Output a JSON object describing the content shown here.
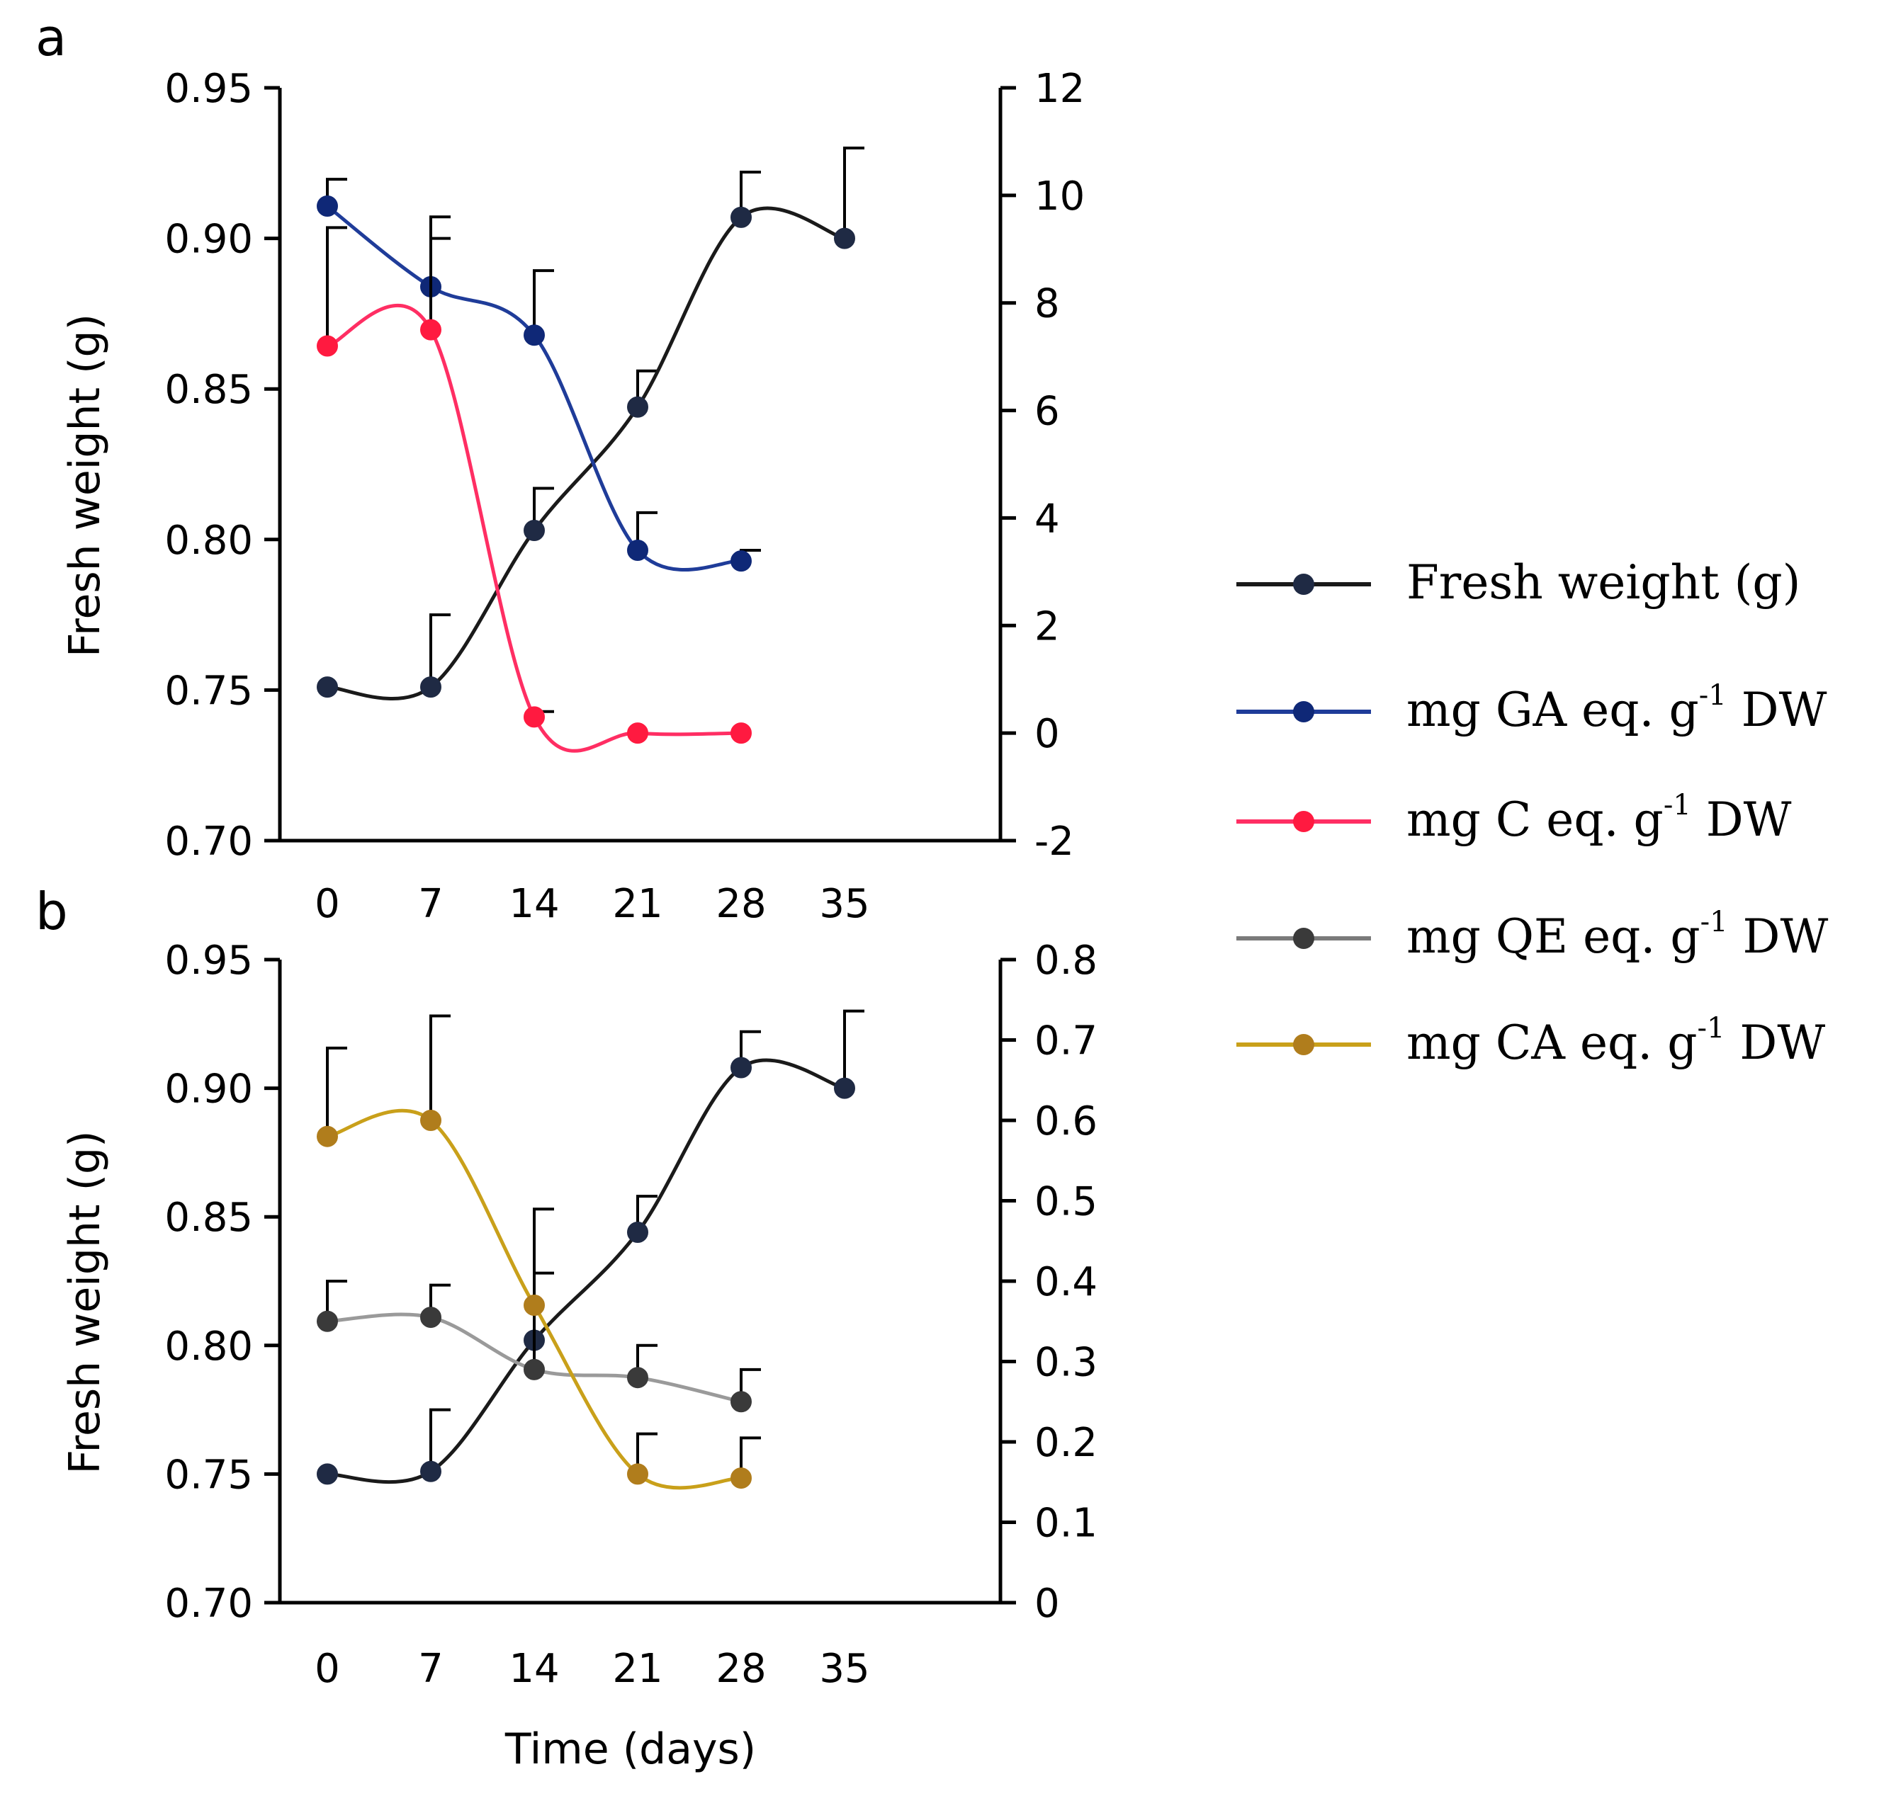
{
  "chart_data": [
    {
      "type": "line",
      "panel_label": "a",
      "xlabel": "",
      "ylabel": "Fresh weight (g)",
      "categories": [
        0,
        7,
        14,
        21,
        28,
        35
      ],
      "x_tick_labels": [
        "0",
        "7",
        "14",
        "21",
        "28",
        "35"
      ],
      "y_left_lim": [
        0.7,
        0.95
      ],
      "y_left_ticks": [
        "0.70",
        "0.75",
        "0.80",
        "0.85",
        "0.90",
        "0.95"
      ],
      "y_right_lim": [
        -2,
        12
      ],
      "y_right_ticks": [
        "-2",
        "0",
        "2",
        "4",
        "6",
        "8",
        "10",
        "12"
      ],
      "series": [
        {
          "name": "Fresh weight (g)",
          "axis": "left",
          "color": "#1a1a1a",
          "marker": "#1f2a44",
          "x": [
            0,
            7,
            14,
            21,
            28,
            35
          ],
          "values": [
            0.751,
            0.751,
            0.803,
            0.844,
            0.907,
            0.9
          ],
          "err": [
            0,
            0.024,
            0.014,
            0.012,
            0.015,
            0.03
          ]
        },
        {
          "name": "mg GA eq. g-1 DW",
          "axis": "right",
          "color": "#1f3c99",
          "marker": "#0f2877",
          "x": [
            0,
            7,
            14,
            21,
            28
          ],
          "values": [
            9.8,
            8.3,
            7.4,
            3.4,
            3.2
          ],
          "err": [
            0.5,
            1.3,
            1.2,
            0.7,
            0.2
          ]
        },
        {
          "name": "mg C eq. g-1 DW",
          "axis": "right",
          "color": "#ff2e63",
          "marker": "#ff1a40",
          "x": [
            0,
            7,
            14,
            21,
            28
          ],
          "values": [
            7.2,
            7.5,
            0.3,
            0.0,
            0.0
          ],
          "err": [
            2.2,
            1.7,
            0.1,
            0,
            0
          ]
        }
      ]
    },
    {
      "type": "line",
      "panel_label": "b",
      "xlabel": "Time (days)",
      "ylabel": "Fresh weight (g)",
      "categories": [
        0,
        7,
        14,
        21,
        28,
        35
      ],
      "x_tick_labels": [
        "0",
        "7",
        "14",
        "21",
        "28",
        "35"
      ],
      "y_left_lim": [
        0.7,
        0.95
      ],
      "y_left_ticks": [
        "0.70",
        "0.75",
        "0.80",
        "0.85",
        "0.90",
        "0.95"
      ],
      "y_right_lim": [
        0,
        0.8
      ],
      "y_right_ticks": [
        "0",
        "0.1",
        "0.2",
        "0.3",
        "0.4",
        "0.5",
        "0.6",
        "0.7",
        "0.8"
      ],
      "series": [
        {
          "name": "Fresh weight (g)",
          "axis": "left",
          "color": "#1a1a1a",
          "marker": "#1f2a44",
          "x": [
            0,
            7,
            14,
            21,
            28,
            35
          ],
          "values": [
            0.75,
            0.751,
            0.802,
            0.844,
            0.908,
            0.9
          ],
          "err": [
            0,
            0.024,
            0.051,
            0.014,
            0.014,
            0.03
          ]
        },
        {
          "name": "mg QE eq. g-1 DW",
          "axis": "right",
          "color": "#9a9a9a",
          "marker": "#3a3a3a",
          "x": [
            0,
            7,
            14,
            21,
            28
          ],
          "values": [
            0.35,
            0.355,
            0.29,
            0.28,
            0.25
          ],
          "err": [
            0.05,
            0.04,
            0.12,
            0.04,
            0.04
          ]
        },
        {
          "name": "mg CA eq. g-1 DW",
          "axis": "right",
          "color": "#c9a01a",
          "marker": "#b07d1c",
          "x": [
            0,
            7,
            14,
            21,
            28
          ],
          "values": [
            0.58,
            0.6,
            0.37,
            0.16,
            0.155
          ],
          "err": [
            0.11,
            0.13,
            0,
            0.05,
            0.05
          ]
        }
      ]
    }
  ],
  "legend": [
    {
      "pre": "Fresh weight (g)",
      "sup": "",
      "post": "",
      "color": "#1a1a1a",
      "marker": "#1f2a44"
    },
    {
      "pre": "mg GA eq. g",
      "sup": "-1",
      "post": " DW",
      "color": "#1f3c99",
      "marker": "#0f2877"
    },
    {
      "pre": "mg C eq. g",
      "sup": "-1",
      "post": " DW",
      "color": "#ff2e63",
      "marker": "#ff1a40"
    },
    {
      "pre": "mg QE eq. g",
      "sup": "-1",
      "post": " DW",
      "color": "#7a7a7a",
      "marker": "#3a3a3a"
    },
    {
      "pre": "mg CA eq. g",
      "sup": "-1",
      "post": " DW",
      "color": "#c9a01a",
      "marker": "#b07d1c"
    }
  ]
}
